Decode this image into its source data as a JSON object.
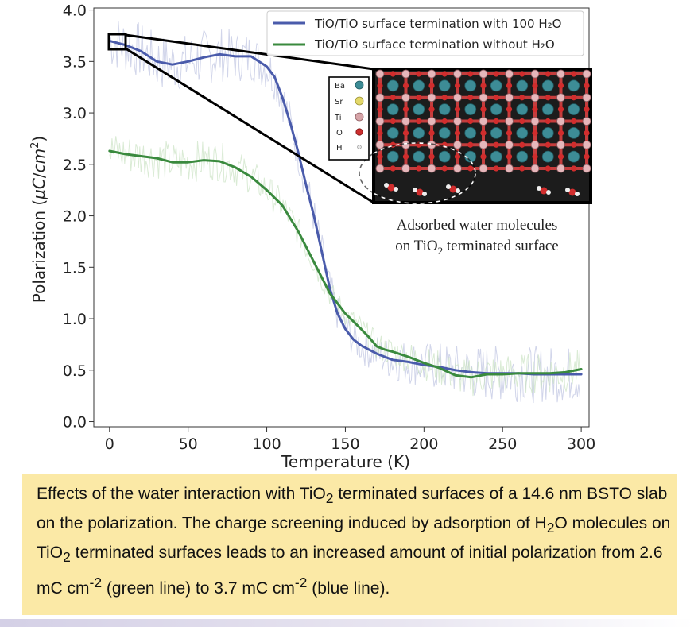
{
  "chart_data": {
    "type": "line",
    "xlabel": "Temperature (K)",
    "ylabel": "Polarization (μC/cm²)",
    "xlim": [
      -10,
      305
    ],
    "ylim": [
      -0.05,
      4.02
    ],
    "x_ticks": [
      "0",
      "50",
      "100",
      "150",
      "200",
      "250",
      "300"
    ],
    "y_ticks": [
      "0.0",
      "0.5",
      "1.0",
      "1.5",
      "2.0",
      "2.5",
      "3.0",
      "3.5",
      "4.0"
    ],
    "grid": false,
    "legend_position": "top-right",
    "series": [
      {
        "name": "TiO/TiO surface termination with 100 H₂O",
        "color": "#4a5bab",
        "x": [
          0,
          10,
          20,
          30,
          40,
          50,
          60,
          70,
          80,
          90,
          100,
          105,
          110,
          115,
          120,
          125,
          130,
          135,
          140,
          145,
          150,
          155,
          160,
          165,
          170,
          175,
          180,
          190,
          200,
          210,
          220,
          230,
          240,
          250,
          260,
          270,
          280,
          290,
          300
        ],
        "y": [
          3.7,
          3.66,
          3.6,
          3.5,
          3.47,
          3.5,
          3.54,
          3.57,
          3.55,
          3.55,
          3.45,
          3.35,
          3.15,
          2.9,
          2.62,
          2.3,
          2.0,
          1.65,
          1.3,
          1.05,
          0.9,
          0.8,
          0.74,
          0.7,
          0.66,
          0.63,
          0.6,
          0.58,
          0.55,
          0.53,
          0.5,
          0.48,
          0.47,
          0.47,
          0.47,
          0.46,
          0.46,
          0.46,
          0.46
        ]
      },
      {
        "name": "TiO/TiO surface termination without H₂O",
        "color": "#3a8a3e",
        "x": [
          0,
          10,
          20,
          30,
          40,
          50,
          60,
          70,
          80,
          90,
          100,
          110,
          120,
          130,
          140,
          150,
          160,
          165,
          170,
          175,
          180,
          190,
          200,
          210,
          220,
          230,
          240,
          250,
          260,
          270,
          280,
          290,
          300
        ],
        "y": [
          2.63,
          2.6,
          2.58,
          2.56,
          2.52,
          2.52,
          2.54,
          2.53,
          2.47,
          2.38,
          2.25,
          2.1,
          1.85,
          1.55,
          1.25,
          1.05,
          0.9,
          0.82,
          0.73,
          0.7,
          0.68,
          0.63,
          0.57,
          0.52,
          0.45,
          0.43,
          0.46,
          0.46,
          0.47,
          0.47,
          0.47,
          0.48,
          0.51
        ]
      }
    ],
    "inset": {
      "caption_line1": "Adsorbed water molecules",
      "caption_line2_a": "on TiO",
      "caption_line2_sub": "2",
      "caption_line2_b": " terminated surface",
      "key": [
        "Ba",
        "Sr",
        "Ti",
        "O",
        "H"
      ]
    }
  },
  "caption": {
    "p1": "Effects of the water interaction with TiO",
    "s1": "2",
    "p2": " terminated surfaces of a 14.6 nm BSTO slab on the polarization. The charge screening induced by adsorption of H",
    "s2": "2",
    "p3": "O molecules on TiO",
    "s3": "2",
    "p4": " terminated surfaces leads to an increased amount of initial polarization from 2.6 mC cm",
    "u1": "-2",
    "p5": " (green line) to 3.7 mC cm",
    "u2": "-2",
    "p6": " (blue line)."
  }
}
